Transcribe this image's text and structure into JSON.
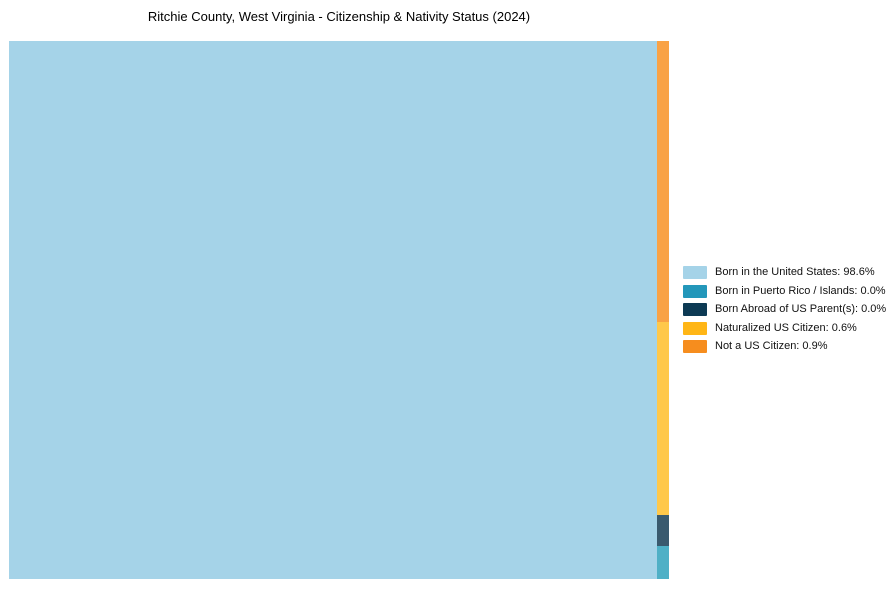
{
  "header": {
    "title": "Ritchie County, West Virginia - Citizenship & Nativity Status (2024)"
  },
  "chart_data": {
    "type": "treemap",
    "title": "Ritchie County, West Virginia - Citizenship & Nativity Status (2024)",
    "unit": "percent",
    "legend_position": "right",
    "categories": [
      "Born in the United States",
      "Born in Puerto Rico / Islands",
      "Born Abroad of US Parent(s)",
      "Naturalized US Citizen",
      "Not a US Citizen"
    ],
    "values": [
      98.6,
      0.0,
      0.0,
      0.6,
      0.9
    ],
    "colors": [
      "#A5D3E8",
      "#2397BA",
      "#0D3A54",
      "#FFB616",
      "#F68D1E"
    ]
  },
  "treemap": {
    "main": {
      "label": "Born in the United States",
      "value_pct": 98.6,
      "fill": "#A5D3E8"
    },
    "strip": [
      {
        "label": "Not a US Citizen",
        "value_pct": 0.9,
        "fill": "#F9A245"
      },
      {
        "label": "Naturalized US Citizen",
        "value_pct": 0.6,
        "fill": "#FFC84A"
      },
      {
        "label": "Born Abroad of US Parent(s)",
        "value_pct": 0.0,
        "fill": "#3A5A6E"
      },
      {
        "label": "Born in Puerto Rico / Islands",
        "value_pct": 0.0,
        "fill": "#4FB0C6"
      }
    ]
  },
  "legend": {
    "items": [
      {
        "label": "Born in the United States: 98.6%",
        "color": "#A5D3E8"
      },
      {
        "label": "Born in Puerto Rico / Islands: 0.0%",
        "color": "#2397BA"
      },
      {
        "label": "Born Abroad of US Parent(s): 0.0%",
        "color": "#0D3A54"
      },
      {
        "label": "Naturalized US Citizen: 0.6%",
        "color": "#FFB616"
      },
      {
        "label": "Not a US Citizen: 0.9%",
        "color": "#F68D1E"
      }
    ]
  }
}
